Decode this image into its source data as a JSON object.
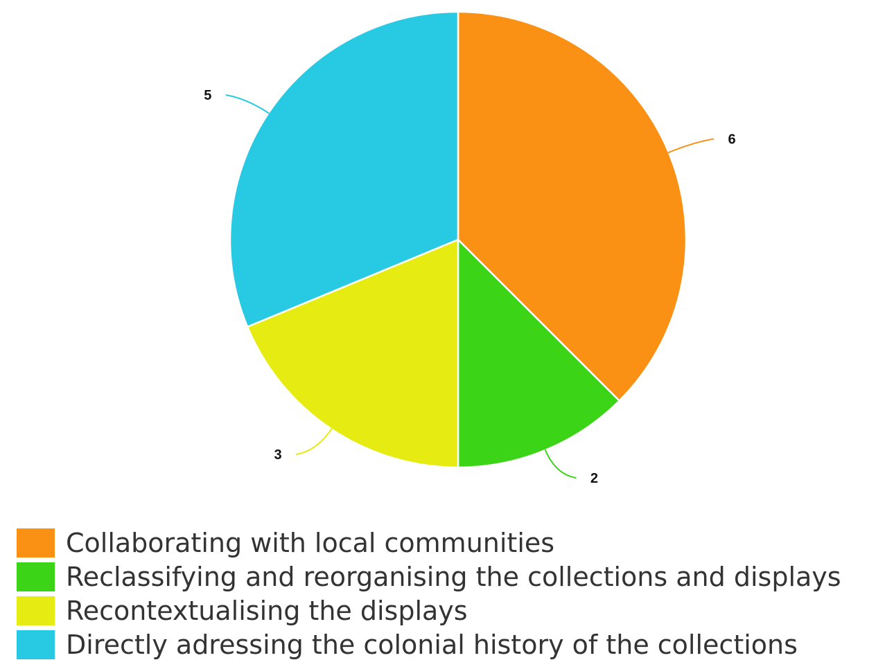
{
  "chart_data": {
    "type": "pie",
    "categories": [
      "Collaborating with local communities",
      "Reclassifying and reorganising the collections and displays",
      "Recontextualising the displays",
      "Directly adressing the colonial history of the collections"
    ],
    "values": [
      6,
      2,
      3,
      5
    ],
    "value_labels": [
      "6",
      "2",
      "3",
      "5"
    ],
    "colors": [
      "#fb9114",
      "#3bd417",
      "#e6ec12",
      "#27c9e3"
    ],
    "start_angle_deg": 0,
    "direction": "clockwise",
    "legend_position": "bottom-left"
  },
  "legend": {
    "items": [
      {
        "label": "Collaborating with local communities",
        "color": "#fb9114"
      },
      {
        "label": "Reclassifying and reorganising the collections and displays",
        "color": "#3bd417"
      },
      {
        "label": "Recontextualising the displays",
        "color": "#e6ec12"
      },
      {
        "label": "Directly adressing the colonial history of the collections",
        "color": "#27c9e3"
      }
    ]
  }
}
